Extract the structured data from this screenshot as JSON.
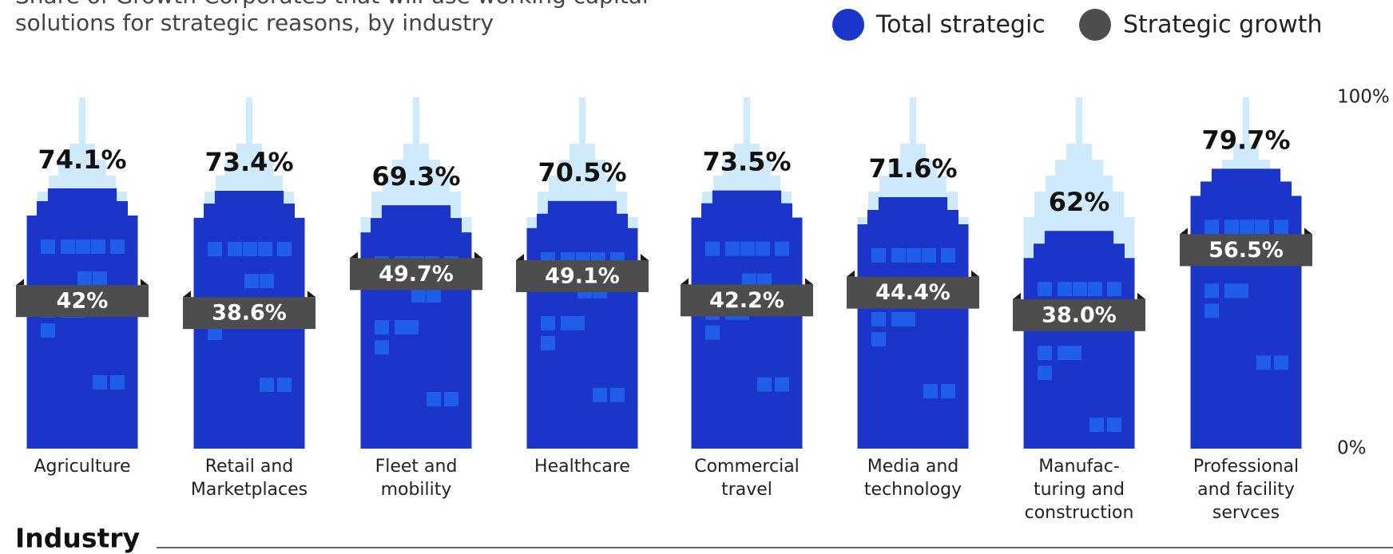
{
  "chart_data": {
    "type": "building",
    "title": "Share of Growth Corporates that will use working capital\nsolutions for strategic reasons, by industry",
    "x_label": "Industry",
    "categories": [
      "Agriculture",
      "Retail and\nMarketplaces",
      "Fleet and\nmobility",
      "Healthcare",
      "Commercial\ntravel",
      "Media and\ntechnology",
      "Manufac-\nturing and\nconstruction",
      "Professional\nand facility\nservces"
    ],
    "series": [
      {
        "name": "Total strategic",
        "color": "#1a35c8",
        "values": [
          74.1,
          73.4,
          69.3,
          70.5,
          73.5,
          71.6,
          62,
          79.7
        ],
        "value_labels": [
          "74.1%",
          "73.4%",
          "69.3%",
          "70.5%",
          "73.5%",
          "71.6%",
          "62%",
          "79.7%"
        ]
      },
      {
        "name": "Strategic growth",
        "color": "#4d4d4d",
        "values": [
          42,
          38.6,
          49.7,
          49.1,
          42.2,
          44.4,
          38.0,
          56.5
        ],
        "value_labels": [
          "42%",
          "38.6%",
          "49.7%",
          "49.1%",
          "42.2%",
          "44.4%",
          "38.0%",
          "56.5%"
        ]
      }
    ],
    "ylim": [
      0,
      100
    ],
    "yticks": [
      {
        "value": 0,
        "label": "0%"
      },
      {
        "value": 100,
        "label": "100%"
      }
    ],
    "legend": "top-right"
  }
}
